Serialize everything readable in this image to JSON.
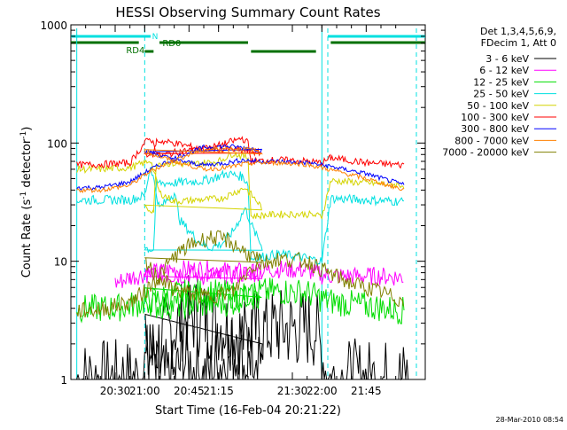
{
  "chart_data": {
    "type": "line",
    "title": "HESSI Observing Summary Count Rates",
    "xlabel": "Start Time (16-Feb-04 20:21:22)",
    "ylabel_main": "Count Rate (s",
    "ylabel_sup1": "-1",
    "ylabel_mid": " detector",
    "ylabel_sup2": "-1",
    "ylabel_end": ")",
    "y_scale": "log",
    "ylim": [
      1,
      1000
    ],
    "x_range_minutes": [
      20.35,
      21.95
    ],
    "x_ticks": [
      {
        "t": 20.5,
        "label": "20:30"
      },
      {
        "t": 20.75,
        "label": "20:45"
      },
      {
        "t": 21.0,
        "label": "21:00"
      },
      {
        "t": 21.25,
        "label": "21:15"
      },
      {
        "t": 21.5,
        "label": "21:30"
      },
      {
        "t": 21.75,
        "label": "21:45"
      },
      {
        "t": 22.0,
        "label": "22:00"
      }
    ],
    "y_ticks": [
      {
        "v": 1,
        "label": "1"
      },
      {
        "v": 10,
        "label": "10"
      },
      {
        "v": 100,
        "label": "100"
      },
      {
        "v": 1000,
        "label": "1000"
      }
    ],
    "legend_header": [
      "Det 1,3,4,5,6,9,",
      "FDecim 1, Att 0"
    ],
    "legend_position": "right",
    "flags": [
      {
        "name": "N",
        "color": "#00e0e0"
      },
      {
        "name": "RD0",
        "color": "#007000"
      },
      {
        "name": "RD4",
        "color": "#007000"
      }
    ],
    "series": [
      {
        "name": "3 - 6 keV",
        "color": "#000000",
        "values": [
          [
            20.37,
            1.0
          ],
          [
            20.45,
            1.0
          ],
          [
            20.58,
            1.0
          ],
          [
            20.62,
            1.6
          ],
          [
            20.68,
            2.5
          ],
          [
            20.75,
            3.5
          ],
          [
            20.85,
            3.0
          ],
          [
            20.95,
            2.2
          ],
          [
            21.01,
            1.8
          ],
          [
            21.04,
            1.0
          ],
          [
            21.1,
            1.0
          ],
          [
            21.13,
            1.5
          ],
          [
            21.2,
            1.0
          ],
          [
            21.26,
            1.4
          ],
          [
            21.3,
            1.8
          ],
          [
            21.34,
            1.2
          ],
          [
            21.36,
            2.6
          ],
          [
            21.45,
            2.7
          ],
          [
            21.5,
            2.7
          ],
          [
            21.58,
            2.7
          ],
          [
            21.62,
            1.0
          ],
          [
            21.9,
            1.0
          ]
        ]
      },
      {
        "name": "6 - 12 keV",
        "color": "#ff00ff",
        "values": [
          [
            20.5,
            6.5
          ],
          [
            20.55,
            7.3
          ],
          [
            20.6,
            7.8
          ],
          [
            20.7,
            8.5
          ],
          [
            20.8,
            8.6
          ],
          [
            20.9,
            8.2
          ],
          [
            21.0,
            7.9
          ],
          [
            21.05,
            7.7
          ],
          [
            21.2,
            7.5
          ],
          [
            21.3,
            7.6
          ],
          [
            21.36,
            8.0
          ],
          [
            21.45,
            8.6
          ],
          [
            21.55,
            8.4
          ],
          [
            21.6,
            7.6
          ],
          [
            21.68,
            7.5
          ],
          [
            21.8,
            7.5
          ],
          [
            21.88,
            7.3
          ]
        ]
      },
      {
        "name": "12 - 25 keV",
        "color": "#00dd00",
        "values": [
          [
            20.37,
            4.0
          ],
          [
            20.45,
            4.0
          ],
          [
            20.5,
            4.0
          ],
          [
            20.6,
            4.5
          ],
          [
            20.7,
            5.2
          ],
          [
            20.8,
            5.5
          ],
          [
            20.9,
            5.2
          ],
          [
            21.0,
            4.8
          ],
          [
            21.04,
            4.2
          ],
          [
            21.2,
            4.3
          ],
          [
            21.3,
            4.5
          ],
          [
            21.36,
            5.4
          ],
          [
            21.45,
            5.6
          ],
          [
            21.55,
            5.4
          ],
          [
            21.62,
            4.6
          ],
          [
            21.75,
            4.2
          ],
          [
            21.88,
            3.8
          ]
        ]
      },
      {
        "name": "25 - 50 keV",
        "color": "#00e0e0",
        "values": [
          [
            20.37,
            33
          ],
          [
            20.45,
            33
          ],
          [
            20.55,
            33
          ],
          [
            20.6,
            36
          ],
          [
            20.62,
            65
          ],
          [
            20.65,
            28
          ],
          [
            20.7,
            38
          ],
          [
            20.72,
            22
          ],
          [
            20.78,
            15
          ],
          [
            20.82,
            13
          ],
          [
            20.86,
            14
          ],
          [
            20.9,
            18
          ],
          [
            20.94,
            28
          ],
          [
            20.97,
            18
          ],
          [
            21.0,
            13
          ],
          [
            21.03,
            12.5
          ],
          [
            21.04,
            46
          ],
          [
            21.1,
            46
          ],
          [
            21.2,
            48
          ],
          [
            21.28,
            55
          ],
          [
            21.33,
            52
          ],
          [
            21.35,
            46
          ],
          [
            21.36,
            10.5
          ],
          [
            21.45,
            11.5
          ],
          [
            21.52,
            11
          ],
          [
            21.6,
            10
          ],
          [
            21.63,
            34
          ],
          [
            21.75,
            33
          ],
          [
            21.88,
            32
          ]
        ]
      },
      {
        "name": "50 - 100 keV",
        "color": "#d4d400",
        "values": [
          [
            20.37,
            60
          ],
          [
            20.45,
            60
          ],
          [
            20.55,
            62
          ],
          [
            20.6,
            68
          ],
          [
            20.62,
            72
          ],
          [
            20.65,
            38
          ],
          [
            20.7,
            32
          ],
          [
            20.78,
            33
          ],
          [
            20.86,
            34
          ],
          [
            20.94,
            42
          ],
          [
            21.0,
            28
          ],
          [
            21.03,
            27
          ],
          [
            21.04,
            68
          ],
          [
            21.15,
            66
          ],
          [
            21.25,
            70
          ],
          [
            21.3,
            82
          ],
          [
            21.35,
            75
          ],
          [
            21.36,
            24
          ],
          [
            21.45,
            25
          ],
          [
            21.55,
            25
          ],
          [
            21.6,
            24
          ],
          [
            21.63,
            48
          ],
          [
            21.75,
            46
          ],
          [
            21.88,
            44
          ]
        ]
      },
      {
        "name": "100 - 300 keV",
        "color": "#ff0000",
        "values": [
          [
            20.37,
            65
          ],
          [
            20.45,
            66
          ],
          [
            20.55,
            68
          ],
          [
            20.6,
            100
          ],
          [
            20.62,
            110
          ],
          [
            20.65,
            78
          ],
          [
            20.72,
            85
          ],
          [
            20.8,
            90
          ],
          [
            20.88,
            88
          ],
          [
            20.96,
            85
          ],
          [
            21.0,
            82
          ],
          [
            21.03,
            80
          ],
          [
            21.04,
            105
          ],
          [
            21.1,
            100
          ],
          [
            21.2,
            88
          ],
          [
            21.28,
            100
          ],
          [
            21.33,
            110
          ],
          [
            21.35,
            100
          ],
          [
            21.36,
            70
          ],
          [
            21.45,
            72
          ],
          [
            21.55,
            70
          ],
          [
            21.6,
            68
          ],
          [
            21.63,
            75
          ],
          [
            21.75,
            68
          ],
          [
            21.88,
            65
          ]
        ]
      },
      {
        "name": "300 - 800 keV",
        "color": "#0000ff",
        "values": [
          [
            20.37,
            42
          ],
          [
            20.45,
            42
          ],
          [
            20.55,
            47
          ],
          [
            20.62,
            60
          ],
          [
            20.72,
            78
          ],
          [
            20.8,
            92
          ],
          [
            20.88,
            94
          ],
          [
            20.96,
            90
          ],
          [
            21.0,
            86
          ],
          [
            21.03,
            82
          ],
          [
            21.1,
            72
          ],
          [
            21.2,
            65
          ],
          [
            21.28,
            68
          ],
          [
            21.33,
            72
          ],
          [
            21.38,
            70
          ],
          [
            21.45,
            70
          ],
          [
            21.55,
            68
          ],
          [
            21.62,
            64
          ],
          [
            21.75,
            55
          ],
          [
            21.88,
            44
          ]
        ]
      },
      {
        "name": "800 - 7000 keV",
        "color": "#ff8000",
        "values": [
          [
            20.37,
            40
          ],
          [
            20.45,
            40
          ],
          [
            20.55,
            44
          ],
          [
            20.62,
            58
          ],
          [
            20.72,
            75
          ],
          [
            20.8,
            88
          ],
          [
            20.88,
            90
          ],
          [
            20.96,
            88
          ],
          [
            21.0,
            84
          ],
          [
            21.03,
            80
          ],
          [
            21.1,
            70
          ],
          [
            21.2,
            60
          ],
          [
            21.28,
            62
          ],
          [
            21.33,
            66
          ],
          [
            21.38,
            68
          ],
          [
            21.45,
            68
          ],
          [
            21.55,
            66
          ],
          [
            21.62,
            60
          ],
          [
            21.75,
            50
          ],
          [
            21.88,
            40
          ]
        ]
      },
      {
        "name": "7000 - 20000 keV",
        "color": "#808000",
        "values": [
          [
            20.37,
            3.8
          ],
          [
            20.45,
            3.9
          ],
          [
            20.55,
            4.5
          ],
          [
            20.6,
            5.5
          ],
          [
            20.65,
            7.5
          ],
          [
            20.7,
            11
          ],
          [
            20.76,
            14
          ],
          [
            20.82,
            16
          ],
          [
            20.88,
            15
          ],
          [
            20.94,
            12
          ],
          [
            21.0,
            9.5
          ],
          [
            21.05,
            7.2
          ],
          [
            21.1,
            5.8
          ],
          [
            21.2,
            5.0
          ],
          [
            21.3,
            5.5
          ],
          [
            21.36,
            9.0
          ],
          [
            21.45,
            10.5
          ],
          [
            21.55,
            10
          ],
          [
            21.62,
            8.0
          ],
          [
            21.7,
            6.5
          ],
          [
            21.8,
            5.5
          ],
          [
            21.88,
            4.5
          ]
        ]
      }
    ]
  },
  "footer_timestamp": "28-Mar-2010 08:54"
}
